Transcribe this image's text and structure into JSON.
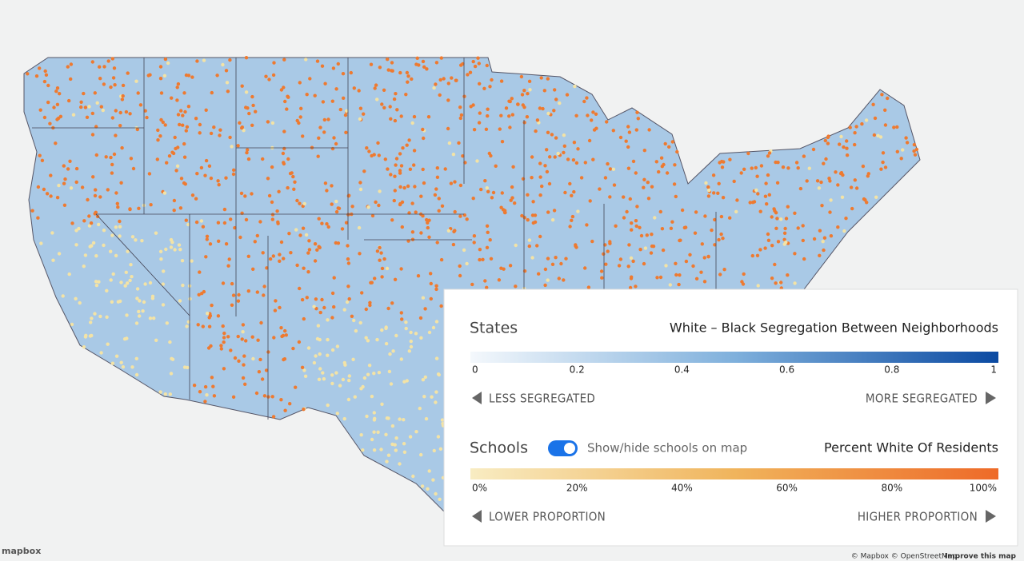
{
  "map": {
    "logo": "mapbox",
    "attribution": "© Mapbox © OpenStreetMap",
    "improve_link": "Improve this map"
  },
  "legend": {
    "states": {
      "title": "States",
      "measure": "White – Black Segregation Between Neighborhoods",
      "ticks": [
        0,
        0.2,
        0.4,
        0.6,
        0.8,
        1
      ],
      "low_label": "LESS SEGREGATED",
      "high_label": "MORE SEGREGATED"
    },
    "schools": {
      "title": "Schools",
      "toggle_label": "Show/hide schools on map",
      "toggle_on": true,
      "measure": "Percent White Of Residents",
      "ticks": [
        {
          "value": 0,
          "label": "0%"
        },
        {
          "value": 20,
          "label": "20%"
        },
        {
          "value": 40,
          "label": "40%"
        },
        {
          "value": 60,
          "label": "60%"
        },
        {
          "value": 80,
          "label": "80%"
        },
        {
          "value": 100,
          "label": "100%"
        }
      ],
      "low_label": "LOWER PROPORTION",
      "high_label": "HIGHER PROPORTION"
    }
  }
}
